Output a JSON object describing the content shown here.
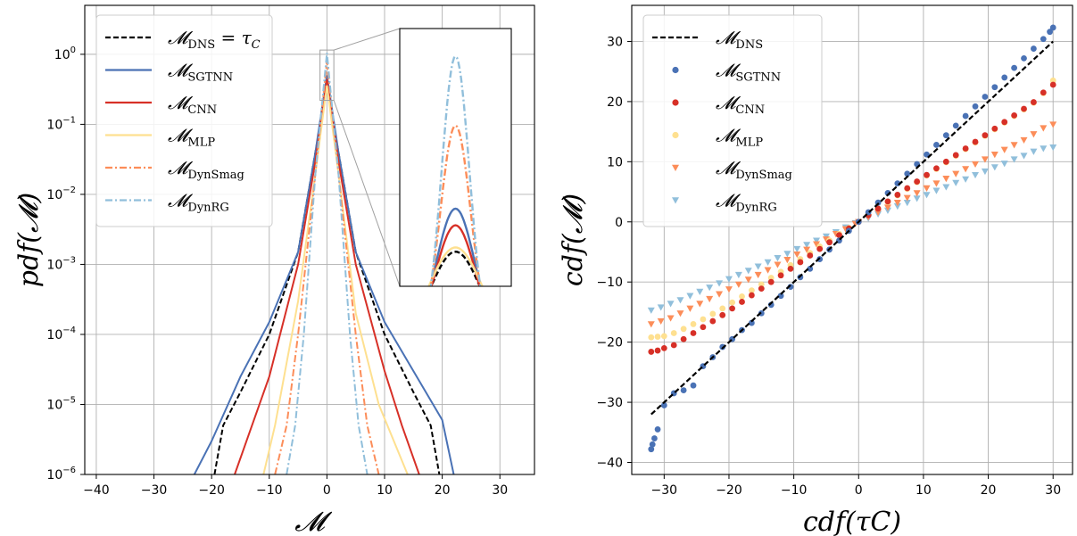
{
  "chart_data": [
    {
      "type": "line",
      "yscale": "log",
      "xlim": [
        -42,
        36
      ],
      "ylim": [
        1e-06,
        5
      ],
      "xticks": [
        -40,
        -30,
        -20,
        -10,
        0,
        10,
        20,
        30
      ],
      "xtick_labels": [
        "−40",
        "−30",
        "−20",
        "−10",
        "0",
        "10",
        "20",
        "30"
      ],
      "yticks": [
        1e-06,
        1e-05,
        0.0001,
        0.001,
        0.01,
        0.1,
        1
      ],
      "ytick_labels": [
        {
          "base": "10",
          "exp": "−6"
        },
        {
          "base": "10",
          "exp": "−5"
        },
        {
          "base": "10",
          "exp": "−4"
        },
        {
          "base": "10",
          "exp": "−3"
        },
        {
          "base": "10",
          "exp": "−2"
        },
        {
          "base": "10",
          "exp": "−1"
        },
        {
          "base": "10",
          "exp": "0"
        }
      ],
      "xlabel": "𝓜",
      "ylabel": "pdf(𝓜)",
      "grid": true,
      "legend_position": "upper-left",
      "inset": {
        "xlim": [
          -1.2,
          1.2
        ],
        "ylim": [
          0.22,
          1.15
        ],
        "note": "zoom around peak"
      },
      "series": [
        {
          "name": {
            "main": "𝓜",
            "sub": "DNS",
            "suffix": " = τ",
            "suffix_sub": "C"
          },
          "color": "#000000",
          "style": "dashed",
          "width": 2.0,
          "peak": 0.345,
          "x": [
            -19.5,
            -18,
            -15,
            -10,
            -5,
            -2,
            0,
            2,
            5,
            10,
            15,
            18,
            19.5
          ],
          "y": [
            1e-06,
            5e-06,
            1.5e-05,
            0.0001,
            0.0015,
            0.04,
            0.345,
            0.04,
            0.0015,
            0.0001,
            1.5e-05,
            5e-06,
            1e-06
          ]
        },
        {
          "name": {
            "main": "𝓜",
            "sub": "SGTNN"
          },
          "color": "#4a72b5",
          "style": "solid",
          "width": 2.0,
          "peak": 0.5,
          "x": [
            -23,
            -20,
            -15,
            -10,
            -5,
            -2,
            0,
            2,
            5,
            10,
            15,
            20,
            22
          ],
          "y": [
            1e-06,
            3e-06,
            2.5e-05,
            0.00015,
            0.0015,
            0.04,
            0.5,
            0.04,
            0.0015,
            0.00015,
            3e-05,
            6e-06,
            1e-06
          ]
        },
        {
          "name": {
            "main": "𝓜",
            "sub": "CNN"
          },
          "color": "#d73027",
          "style": "solid",
          "width": 2.0,
          "peak": 0.44,
          "x": [
            -16,
            -13,
            -10,
            -5,
            -2,
            0,
            2,
            5,
            10,
            13,
            16
          ],
          "y": [
            1e-06,
            5e-06,
            2.5e-05,
            0.001,
            0.03,
            0.44,
            0.03,
            0.001,
            3e-05,
            5e-06,
            1e-06
          ]
        },
        {
          "name": {
            "main": "𝓜",
            "sub": "MLP"
          },
          "color": "#fee090",
          "style": "solid",
          "width": 2.0,
          "peak": 0.36,
          "x": [
            -11,
            -9,
            -5,
            -2,
            0,
            2,
            5,
            9,
            14
          ],
          "y": [
            1e-06,
            5e-06,
            0.0003,
            0.02,
            0.36,
            0.02,
            0.0002,
            1e-05,
            1e-06
          ]
        },
        {
          "name": {
            "main": "𝓜",
            "sub": "DynSmag"
          },
          "color": "#fc8d59",
          "style": "dashdot",
          "width": 2.0,
          "peak": 0.8,
          "x": [
            -9,
            -7,
            -5,
            -2,
            0,
            2,
            5,
            7,
            9
          ],
          "y": [
            1e-06,
            5e-06,
            0.0001,
            0.02,
            0.8,
            0.02,
            0.0001,
            5e-06,
            1e-06
          ]
        },
        {
          "name": {
            "main": "𝓜",
            "sub": "DynRG"
          },
          "color": "#91bfdb",
          "style": "dashdot",
          "width": 2.0,
          "peak": 1.05,
          "x": [
            -7,
            -5.5,
            -4,
            -2,
            0,
            2,
            4,
            5.5,
            7
          ],
          "y": [
            1e-06,
            5e-06,
            0.0001,
            0.02,
            1.05,
            0.02,
            0.0001,
            5e-06,
            1e-06
          ]
        }
      ]
    },
    {
      "type": "scatter",
      "xlim": [
        -35,
        33
      ],
      "ylim": [
        -42,
        36
      ],
      "xticks": [
        -30,
        -20,
        -10,
        0,
        10,
        20,
        30
      ],
      "xtick_labels": [
        "−30",
        "−20",
        "−10",
        "0",
        "10",
        "20",
        "30"
      ],
      "yticks": [
        -40,
        -30,
        -20,
        -10,
        0,
        10,
        20,
        30
      ],
      "ytick_labels": [
        "−40",
        "−30",
        "−20",
        "−10",
        "0",
        "10",
        "20",
        "30"
      ],
      "xlabel": "cdf(τC)",
      "ylabel": "cdf(𝓜)",
      "grid": true,
      "legend_position": "upper-left",
      "series": [
        {
          "name": {
            "main": "𝓜",
            "sub": "DNS"
          },
          "type": "line",
          "color": "#000000",
          "style": "dashed",
          "x": [
            -32,
            30
          ],
          "y": [
            -32,
            30
          ]
        },
        {
          "name": {
            "main": "𝓜",
            "sub": "SGTNN"
          },
          "marker": "circle",
          "color": "#4a72b5",
          "x": [
            -32.0,
            -31.8,
            -31.5,
            -31.0,
            -30.0,
            -28.5,
            -27.0,
            -25.5,
            -24.0,
            -22.5,
            -21.0,
            -19.5,
            -18.0,
            -16.5,
            -15.0,
            -13.5,
            -12.0,
            -10.5,
            -9.0,
            -7.5,
            -6.0,
            -4.5,
            -3.0,
            -1.5,
            0.0,
            1.5,
            3.0,
            4.5,
            6.0,
            7.5,
            9.0,
            10.5,
            12.0,
            13.5,
            15.0,
            16.5,
            18.0,
            19.5,
            21.0,
            22.5,
            24.0,
            25.5,
            27.0,
            28.5,
            29.5,
            30.0
          ],
          "y": [
            -37.8,
            -37.0,
            -36.0,
            -34.5,
            -30.5,
            -28.5,
            -28.0,
            -27.2,
            -24.0,
            -22.5,
            -20.8,
            -19.5,
            -18.0,
            -16.8,
            -15.2,
            -13.8,
            -12.3,
            -10.8,
            -9.2,
            -7.8,
            -6.2,
            -4.6,
            -3.1,
            -1.5,
            0.0,
            1.6,
            3.2,
            4.8,
            6.4,
            8.0,
            9.6,
            11.2,
            12.8,
            14.4,
            16.0,
            17.6,
            19.2,
            20.8,
            22.4,
            24.0,
            25.6,
            27.2,
            28.8,
            30.4,
            31.6,
            32.3
          ]
        },
        {
          "name": {
            "main": "𝓜",
            "sub": "CNN"
          },
          "marker": "circle",
          "color": "#d73027",
          "x": [
            -32,
            -31,
            -30,
            -28.5,
            -27,
            -25.5,
            -24,
            -22.5,
            -21,
            -19.5,
            -18,
            -16.5,
            -15,
            -13.5,
            -12,
            -10.5,
            -9,
            -7.5,
            -6,
            -4.5,
            -3,
            -1.5,
            0,
            1.5,
            3,
            4.5,
            6,
            7.5,
            9,
            10.5,
            12,
            13.5,
            15,
            16.5,
            18,
            19.5,
            21,
            22.5,
            24,
            25.5,
            27,
            28.5,
            30
          ],
          "y": [
            -21.6,
            -21.4,
            -21.0,
            -20.5,
            -19.5,
            -18.5,
            -17.5,
            -16.5,
            -15.5,
            -14.4,
            -13.3,
            -12.2,
            -11.1,
            -10.0,
            -8.9,
            -7.8,
            -6.7,
            -5.6,
            -4.5,
            -3.4,
            -2.2,
            -1.1,
            0.0,
            1.1,
            2.2,
            3.4,
            4.5,
            5.6,
            6.7,
            7.8,
            8.9,
            10.0,
            11.1,
            12.2,
            13.3,
            14.4,
            15.5,
            16.6,
            17.7,
            18.8,
            19.9,
            21.5,
            22.8
          ]
        },
        {
          "name": {
            "main": "𝓜",
            "sub": "MLP"
          },
          "marker": "circle",
          "color": "#fee090",
          "x": [
            -32,
            -31,
            -30,
            -28.5,
            -27,
            -25.5,
            -24,
            -22.5,
            -21,
            -19.5,
            -18,
            -16.5,
            -15,
            -13.5,
            -12,
            -10.5,
            -9,
            -7.5,
            -6,
            -4.5,
            -3,
            -1.5,
            0,
            1.5,
            3,
            4.5,
            6,
            7.5,
            9,
            10.5,
            12,
            13.5,
            15,
            16.5,
            18,
            19.5,
            21,
            22.5,
            24,
            25.5,
            27,
            28.5,
            30
          ],
          "y": [
            -19.2,
            -19.1,
            -19.0,
            -18.5,
            -17.8,
            -17.0,
            -16.2,
            -15.3,
            -14.4,
            -13.4,
            -12.4,
            -11.4,
            -10.4,
            -9.3,
            -8.3,
            -7.2,
            -6.2,
            -5.2,
            -4.1,
            -3.1,
            -2.0,
            -1.0,
            0.0,
            1.1,
            2.2,
            3.3,
            4.4,
            5.5,
            6.6,
            7.7,
            8.8,
            9.9,
            11.0,
            12.1,
            13.2,
            14.3,
            15.4,
            16.5,
            17.6,
            18.7,
            19.8,
            21.4,
            23.5
          ]
        },
        {
          "name": {
            "main": "𝓜",
            "sub": "DynSmag"
          },
          "marker": "triangle",
          "color": "#fc8d59",
          "x": [
            -32,
            -30.5,
            -29,
            -27.5,
            -26,
            -24.5,
            -23,
            -21.5,
            -20,
            -18.5,
            -17,
            -15.5,
            -14,
            -12.5,
            -11,
            -9.5,
            -8,
            -6.5,
            -5,
            -3.5,
            -2,
            -0.5,
            0,
            1.5,
            3,
            4.5,
            6,
            7.5,
            9,
            10.5,
            12,
            13.5,
            15,
            16.5,
            18,
            19.5,
            21,
            22.5,
            24,
            25.5,
            27,
            28.5,
            30
          ],
          "y": [
            -17.0,
            -16.5,
            -16.0,
            -15.2,
            -14.4,
            -13.6,
            -12.8,
            -12.0,
            -11.2,
            -10.4,
            -9.6,
            -8.8,
            -8.0,
            -7.1,
            -6.3,
            -5.4,
            -4.6,
            -3.7,
            -2.9,
            -2.0,
            -1.2,
            -0.3,
            0.0,
            0.8,
            1.6,
            2.4,
            3.2,
            4.0,
            4.8,
            5.6,
            6.4,
            7.2,
            8.0,
            8.8,
            9.6,
            10.4,
            11.2,
            12.0,
            12.8,
            13.6,
            14.6,
            15.6,
            16.2
          ]
        },
        {
          "name": {
            "main": "𝓜",
            "sub": "DynRG"
          },
          "marker": "triangle",
          "color": "#91bfdb",
          "x": [
            -32,
            -30.5,
            -29,
            -27.5,
            -26,
            -24.5,
            -23,
            -21.5,
            -20,
            -18.5,
            -17,
            -15.5,
            -14,
            -12.5,
            -11,
            -9.5,
            -8,
            -6.5,
            -5,
            -3.5,
            -2,
            -0.5,
            0,
            1.5,
            3,
            4.5,
            6,
            7.5,
            9,
            10.5,
            12,
            13.5,
            15,
            16.5,
            18,
            19.5,
            21,
            22.5,
            24,
            25.5,
            27,
            28.5,
            30
          ],
          "y": [
            -14.7,
            -14.2,
            -13.6,
            -13.0,
            -12.3,
            -11.6,
            -10.9,
            -10.2,
            -9.5,
            -8.8,
            -8.1,
            -7.4,
            -6.7,
            -6.0,
            -5.3,
            -4.5,
            -3.8,
            -3.1,
            -2.4,
            -1.7,
            -0.9,
            -0.2,
            0.0,
            0.6,
            1.3,
            1.9,
            2.6,
            3.2,
            3.9,
            4.5,
            5.2,
            5.8,
            6.5,
            7.1,
            7.8,
            8.4,
            9.1,
            9.7,
            10.4,
            11.0,
            11.7,
            12.2,
            12.4
          ]
        }
      ]
    }
  ]
}
